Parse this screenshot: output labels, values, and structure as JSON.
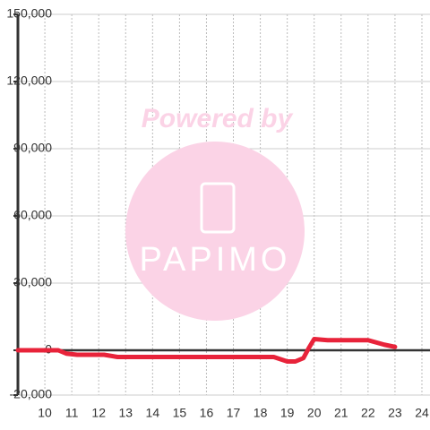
{
  "chart_data": {
    "type": "line",
    "watermark": {
      "text": "Powered by",
      "logo": "PAPIMO"
    },
    "x": [
      9,
      10.5,
      10.8,
      11.2,
      12.2,
      12.7,
      18.5,
      19,
      19.3,
      19.6,
      19.8,
      20,
      20.5,
      22,
      22.6,
      23
    ],
    "series": [
      {
        "color": "#e8233a",
        "values": [
          0,
          0,
          -1500,
          -2000,
          -2000,
          -3000,
          -3000,
          -5000,
          -5000,
          -3500,
          1000,
          5000,
          4500,
          4500,
          2500,
          1500
        ]
      }
    ],
    "xlim": [
      9,
      24.3
    ],
    "xticks": [
      10,
      11,
      12,
      13,
      14,
      15,
      16,
      17,
      18,
      19,
      20,
      21,
      22,
      23,
      24
    ],
    "ylim": [
      -20000,
      150000
    ],
    "yticks": [
      {
        "value": -20000,
        "label": "-20,000"
      },
      0,
      {
        "value": 30000,
        "label": "30,000"
      },
      {
        "value": 60000,
        "label": "60,000"
      },
      {
        "value": 90000,
        "label": "90,000"
      },
      {
        "value": 120000,
        "label": "120,000"
      },
      {
        "value": 150000,
        "label": "150,000"
      }
    ],
    "grid": true
  }
}
